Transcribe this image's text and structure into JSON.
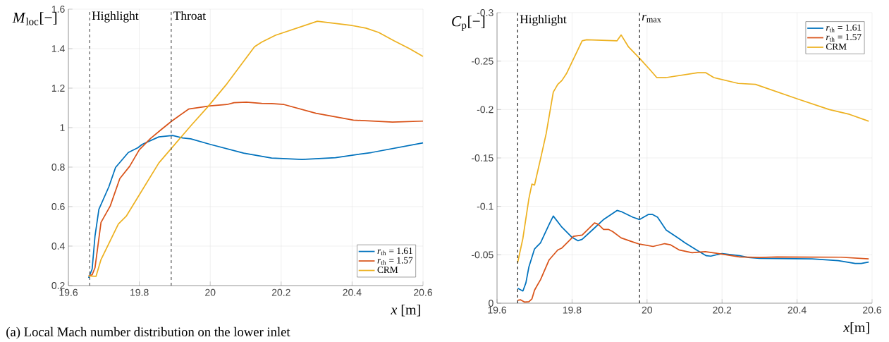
{
  "chart_data": [
    {
      "type": "line",
      "ylabel": "*M*$_{loc}$[−]",
      "xlabel": "*x* [m]",
      "xlim": [
        19.6,
        20.6
      ],
      "ylim": [
        0.2,
        1.6
      ],
      "xticks": [
        19.6,
        19.8,
        20,
        20.2,
        20.4,
        20.6
      ],
      "yticks": [
        0.2,
        0.4,
        0.6,
        0.8,
        1,
        1.2,
        1.4,
        1.6
      ],
      "grid": true,
      "legend": "bottom right",
      "line_style": "solid",
      "ref_lines": [
        {
          "axis": "x",
          "value": 19.66,
          "label": "Highlight",
          "color": "#404040",
          "line_style": "dashed"
        },
        {
          "axis": "x",
          "value": 19.89,
          "label": "Throat",
          "color": "#404040",
          "line_style": "dashed"
        }
      ],
      "annotations": [
        "(a) Local Mach number distribution on the lower inlet"
      ],
      "series": [
        {
          "name": "*r*$_{th}$ = 1.61",
          "color": "#0072bd",
          "x": [
            19.657,
            19.667,
            19.675,
            19.686,
            19.714,
            19.733,
            19.769,
            19.796,
            19.808,
            19.855,
            19.894,
            19.922,
            19.945,
            20.0,
            20.094,
            20.173,
            20.259,
            20.353,
            20.455,
            20.6
          ],
          "values": [
            0.239,
            0.284,
            0.45,
            0.586,
            0.7,
            0.798,
            0.874,
            0.898,
            0.915,
            0.953,
            0.96,
            0.948,
            0.943,
            0.915,
            0.871,
            0.846,
            0.839,
            0.848,
            0.874,
            0.923
          ]
        },
        {
          "name": "*r*$_{th}$ = 1.57",
          "color": "#d95319",
          "x": [
            19.657,
            19.667,
            19.675,
            19.692,
            19.718,
            19.745,
            19.773,
            19.8,
            19.831,
            19.863,
            19.892,
            19.939,
            20.0,
            20.047,
            20.067,
            20.102,
            20.145,
            20.173,
            20.208,
            20.298,
            20.404,
            20.514,
            20.6
          ],
          "values": [
            0.249,
            0.255,
            0.29,
            0.52,
            0.603,
            0.742,
            0.805,
            0.888,
            0.944,
            0.992,
            1.034,
            1.094,
            1.11,
            1.117,
            1.126,
            1.129,
            1.123,
            1.122,
            1.117,
            1.073,
            1.038,
            1.028,
            1.033
          ]
        },
        {
          "name": "CRM",
          "color": "#edb120",
          "x": [
            19.657,
            19.678,
            19.692,
            19.741,
            19.763,
            19.855,
            19.945,
            19.992,
            20.047,
            20.125,
            20.145,
            20.184,
            20.302,
            20.4,
            20.439,
            20.475,
            20.518,
            20.561,
            20.6
          ],
          "values": [
            0.249,
            0.247,
            0.332,
            0.512,
            0.551,
            0.821,
            1.009,
            1.103,
            1.222,
            1.41,
            1.433,
            1.468,
            1.539,
            1.517,
            1.504,
            1.482,
            1.44,
            1.401,
            1.361
          ]
        }
      ]
    },
    {
      "type": "line",
      "ylabel": "*C*$_{p}$[−]",
      "xlabel": "*x*[m]",
      "xlim": [
        19.6,
        20.6
      ],
      "ylim": [
        0,
        -0.3
      ],
      "xticks": [
        19.6,
        19.8,
        20,
        20.2,
        20.4,
        20.6
      ],
      "yticks": [
        0,
        -0.05,
        -0.1,
        -0.15,
        -0.2,
        -0.25,
        -0.3
      ],
      "grid": true,
      "legend": "top right",
      "line_style": "solid",
      "ref_lines": [
        {
          "axis": "x",
          "value": 19.655,
          "label": "Highlight",
          "color": "#000000",
          "line_style": "dashed"
        },
        {
          "axis": "x",
          "value": 19.98,
          "label": "*r*$_{max}$",
          "color": "#000000",
          "line_style": "dashed"
        }
      ],
      "series": [
        {
          "name": "*r*$_{th}$ = 1.61",
          "color": "#0072bd",
          "x": [
            19.655,
            19.669,
            19.677,
            19.685,
            19.7,
            19.716,
            19.739,
            19.75,
            19.773,
            19.8,
            19.816,
            19.827,
            19.858,
            19.885,
            19.92,
            19.931,
            19.962,
            19.98,
            20.004,
            20.014,
            20.028,
            20.051,
            20.085,
            20.101,
            20.132,
            20.158,
            20.17,
            20.2,
            20.247,
            20.27,
            20.3,
            20.44,
            20.51,
            20.555,
            20.571,
            20.591
          ],
          "values": [
            -0.0155,
            -0.0126,
            -0.021,
            -0.0375,
            -0.056,
            -0.0624,
            -0.0815,
            -0.09,
            -0.0785,
            -0.068,
            -0.0645,
            -0.066,
            -0.077,
            -0.0867,
            -0.0958,
            -0.0946,
            -0.0888,
            -0.0864,
            -0.0917,
            -0.0917,
            -0.0888,
            -0.0756,
            -0.0668,
            -0.0624,
            -0.055,
            -0.049,
            -0.0486,
            -0.0513,
            -0.049,
            -0.0472,
            -0.0463,
            -0.0457,
            -0.044,
            -0.041,
            -0.041,
            -0.0425
          ]
        },
        {
          "name": "*r*$_{th}$ = 1.57",
          "color": "#d95319",
          "x": [
            19.655,
            19.663,
            19.673,
            19.685,
            19.693,
            19.7,
            19.716,
            19.739,
            19.762,
            19.773,
            19.804,
            19.827,
            19.86,
            19.87,
            19.884,
            19.897,
            19.908,
            19.931,
            19.962,
            19.98,
            20.016,
            20.047,
            20.062,
            20.085,
            20.12,
            20.155,
            20.2,
            20.247,
            20.3,
            20.347,
            20.517,
            20.591
          ],
          "values": [
            -0.003,
            -0.0035,
            -0.0012,
            -0.0015,
            -0.0044,
            -0.0135,
            -0.0243,
            -0.0448,
            -0.055,
            -0.057,
            -0.069,
            -0.0703,
            -0.0829,
            -0.0815,
            -0.0762,
            -0.0762,
            -0.0741,
            -0.0674,
            -0.0633,
            -0.061,
            -0.0586,
            -0.0615,
            -0.0604,
            -0.0551,
            -0.0522,
            -0.0533,
            -0.0507,
            -0.0478,
            -0.0472,
            -0.0478,
            -0.0475,
            -0.0457
          ]
        },
        {
          "name": "CRM",
          "color": "#edb120",
          "x": [
            19.655,
            19.669,
            19.685,
            19.693,
            19.7,
            19.716,
            19.731,
            19.75,
            19.762,
            19.773,
            19.785,
            19.827,
            19.839,
            19.92,
            19.931,
            19.95,
            19.98,
            20.008,
            20.026,
            20.051,
            20.135,
            20.157,
            20.178,
            20.243,
            20.289,
            20.401,
            20.486,
            20.54,
            20.591
          ],
          "values": [
            -0.042,
            -0.067,
            -0.108,
            -0.123,
            -0.122,
            -0.149,
            -0.175,
            -0.218,
            -0.226,
            -0.23,
            -0.237,
            -0.271,
            -0.272,
            -0.271,
            -0.277,
            -0.265,
            -0.253,
            -0.241,
            -0.233,
            -0.233,
            -0.238,
            -0.238,
            -0.233,
            -0.227,
            -0.226,
            -0.211,
            -0.2,
            -0.195,
            -0.188
          ]
        }
      ]
    }
  ]
}
